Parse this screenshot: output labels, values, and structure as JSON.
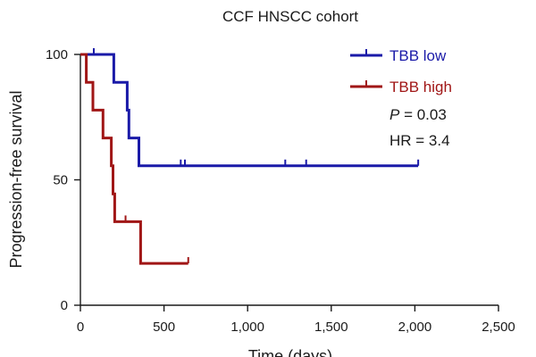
{
  "chart_data": {
    "type": "line",
    "subtype": "kaplan-meier",
    "title": "CCF HNSCC cohort",
    "xlabel": "Time (days)",
    "ylabel": "Progression-free survival",
    "xlim": [
      0,
      2500
    ],
    "ylim": [
      0,
      100
    ],
    "xticks": [
      0,
      500,
      1000,
      1500,
      2000,
      2500
    ],
    "xtick_labels": [
      "0",
      "500",
      "1,000",
      "1,500",
      "2,000",
      "2,500"
    ],
    "yticks": [
      0,
      50,
      100
    ],
    "ytick_labels": [
      "0",
      "50",
      "100"
    ],
    "legend_position": "top-right",
    "series": [
      {
        "name": "TBB low",
        "color": "#1a1aa8",
        "steps": [
          [
            0,
            100
          ],
          [
            200,
            100
          ],
          [
            200,
            88.9
          ],
          [
            280,
            88.9
          ],
          [
            280,
            77.8
          ],
          [
            290,
            77.8
          ],
          [
            290,
            66.7
          ],
          [
            350,
            66.7
          ],
          [
            350,
            55.6
          ],
          [
            2020,
            55.6
          ]
        ],
        "censored": [
          [
            80,
            100
          ],
          [
            600,
            55.6
          ],
          [
            625,
            55.6
          ],
          [
            1225,
            55.6
          ],
          [
            1350,
            55.6
          ],
          [
            2020,
            55.6
          ]
        ]
      },
      {
        "name": "TBB high",
        "color": "#a01616",
        "steps": [
          [
            0,
            100
          ],
          [
            35,
            100
          ],
          [
            35,
            88.9
          ],
          [
            75,
            88.9
          ],
          [
            75,
            77.8
          ],
          [
            135,
            77.8
          ],
          [
            135,
            66.7
          ],
          [
            185,
            66.7
          ],
          [
            185,
            55.6
          ],
          [
            195,
            55.6
          ],
          [
            195,
            44.4
          ],
          [
            205,
            44.4
          ],
          [
            205,
            33.3
          ],
          [
            360,
            33.3
          ],
          [
            360,
            16.7
          ],
          [
            645,
            16.7
          ]
        ],
        "censored": [
          [
            270,
            33.3
          ],
          [
            645,
            16.7
          ]
        ]
      }
    ],
    "annotations": {
      "p_label": "P",
      "p_value": " = 0.03",
      "hr": "HR = 3.4"
    }
  }
}
